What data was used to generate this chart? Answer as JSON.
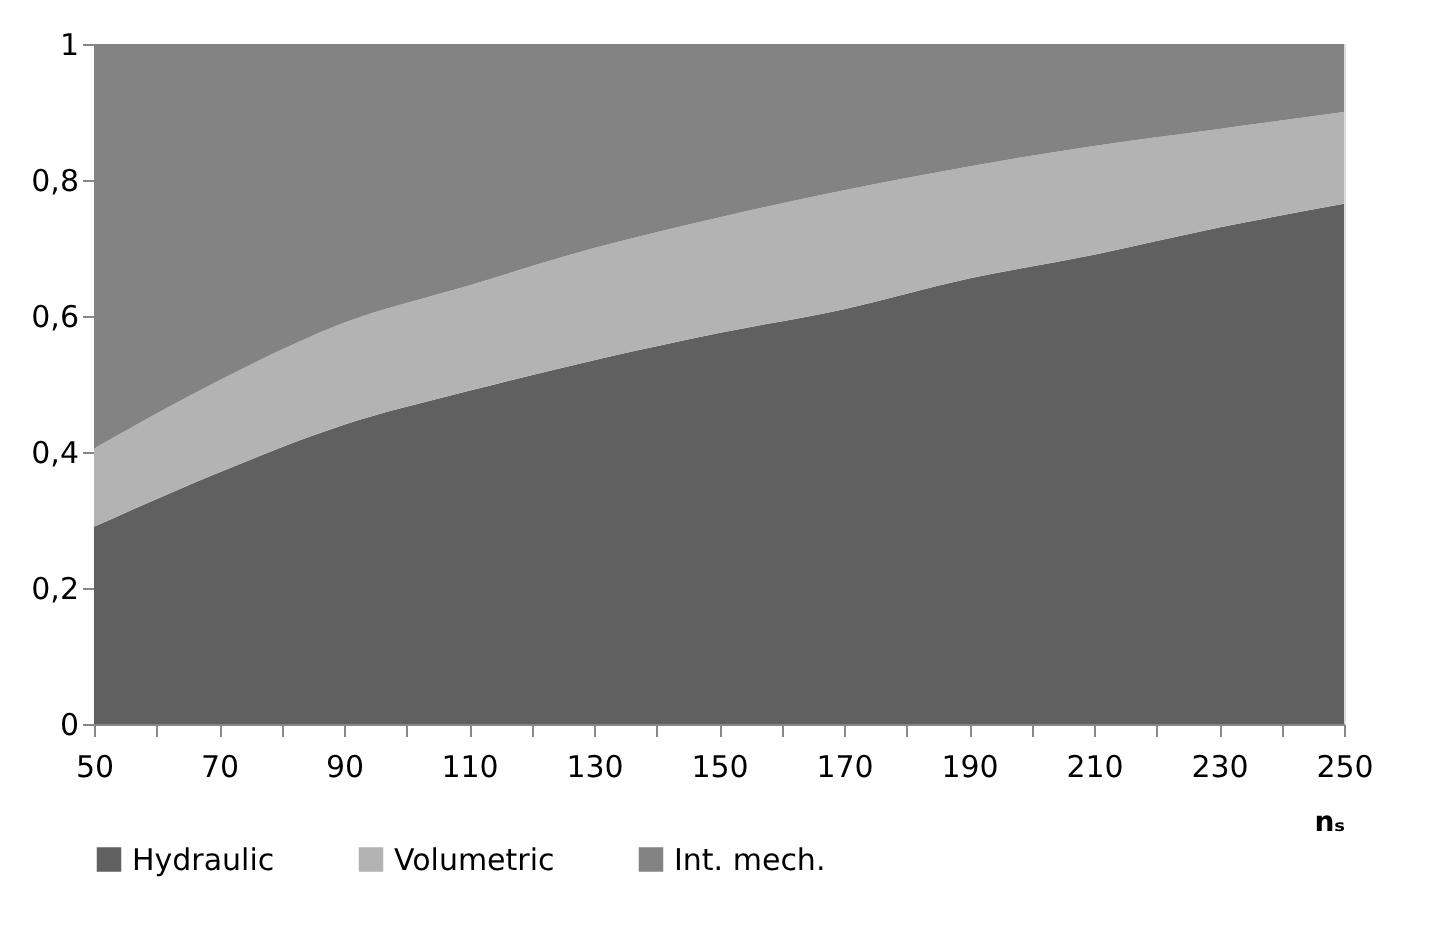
{
  "chart_data": {
    "type": "area",
    "stacked": true,
    "xlabel": "nₛ",
    "x": [
      50,
      70,
      90,
      110,
      130,
      150,
      170,
      190,
      210,
      230,
      250
    ],
    "series": [
      {
        "name": "Hydraulic",
        "color": "#606060",
        "values": [
          0.29,
          0.37,
          0.44,
          0.49,
          0.535,
          0.575,
          0.61,
          0.655,
          0.69,
          0.73,
          0.765
        ]
      },
      {
        "name": "Volumetric",
        "color": "#b3b3b3",
        "values": [
          0.115,
          0.135,
          0.15,
          0.155,
          0.165,
          0.17,
          0.175,
          0.165,
          0.16,
          0.145,
          0.135
        ]
      },
      {
        "name": "Int. mech.",
        "color": "#838383",
        "values": [
          0.595,
          0.495,
          0.41,
          0.355,
          0.3,
          0.255,
          0.215,
          0.18,
          0.15,
          0.125,
          0.1
        ]
      }
    ],
    "xlim": [
      50,
      250
    ],
    "xticks": [
      50,
      {
        "value": 60,
        "label": null
      },
      70,
      {
        "value": 80,
        "label": null
      },
      90,
      {
        "value": 100,
        "label": null
      },
      110,
      {
        "value": 120,
        "label": null
      },
      130,
      {
        "value": 140,
        "label": null
      },
      150,
      {
        "value": 160,
        "label": null
      },
      170,
      {
        "value": 180,
        "label": null
      },
      190,
      {
        "value": 200,
        "label": null
      },
      210,
      {
        "value": 220,
        "label": null
      },
      230,
      {
        "value": 240,
        "label": null
      },
      250
    ],
    "ylim": [
      0,
      1
    ],
    "yticks": [
      0,
      {
        "value": 0.2,
        "label": "0,2"
      },
      {
        "value": 0.4,
        "label": "0,4"
      },
      {
        "value": 0.6,
        "label": "0,6"
      },
      {
        "value": 0.8,
        "label": "0,8"
      },
      1
    ],
    "grid": false,
    "legend": "bottom"
  }
}
